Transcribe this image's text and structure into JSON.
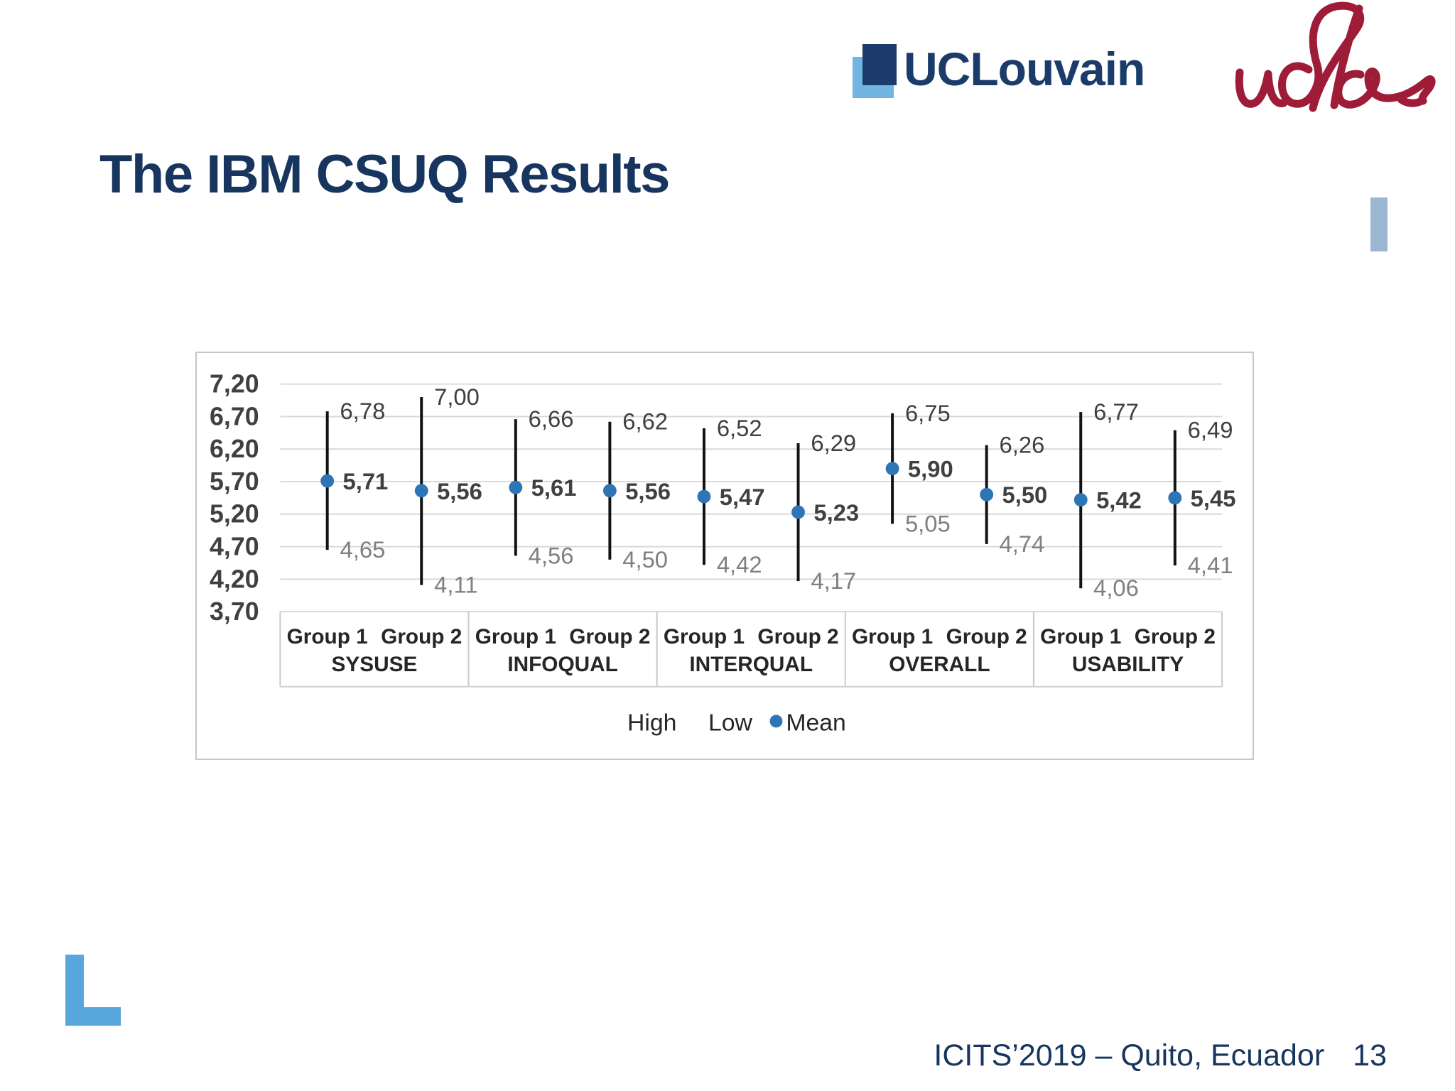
{
  "slide": {
    "title": "The IBM CSUQ Results",
    "footer_text": "ICITS’2019 – Quito, Ecuador",
    "page_number": "13"
  },
  "header": {
    "uclouvain_logo_text": "UCLouvain",
    "udla_logo_text": "udla"
  },
  "colors": {
    "title_navy": "#17355e",
    "uclouvain_navy": "#1b3c6b",
    "logo_light_blue": "#58a8db",
    "udla_crimson": "#9e1c38",
    "right_accent_blue": "#9cb7d3",
    "corner_l_blue": "#58a7dc",
    "mean_dot_blue": "#2e75b6",
    "grid_gray": "#d9d9d9",
    "high_label_gray": "#3f3f3f",
    "low_label_gray": "#7f7f7f",
    "mean_label_gray": "#404040"
  },
  "chart_data": {
    "type": "hilo-mean",
    "title": "",
    "categories": [
      "SYSUSE",
      "INFOQUAL",
      "INTERQUAL",
      "OVERALL",
      "USABILITY"
    ],
    "group_labels": [
      "Group 1",
      "Group 2"
    ],
    "series": [
      {
        "category": "SYSUSE",
        "group": "Group 1",
        "high": 6.78,
        "mean": 5.71,
        "low": 4.65
      },
      {
        "category": "SYSUSE",
        "group": "Group 2",
        "high": 7.0,
        "mean": 5.56,
        "low": 4.11
      },
      {
        "category": "INFOQUAL",
        "group": "Group 1",
        "high": 6.66,
        "mean": 5.61,
        "low": 4.56
      },
      {
        "category": "INFOQUAL",
        "group": "Group 2",
        "high": 6.62,
        "mean": 5.56,
        "low": 4.5
      },
      {
        "category": "INTERQUAL",
        "group": "Group 1",
        "high": 6.52,
        "mean": 5.47,
        "low": 4.42
      },
      {
        "category": "INTERQUAL",
        "group": "Group 2",
        "high": 6.29,
        "mean": 5.23,
        "low": 4.17
      },
      {
        "category": "OVERALL",
        "group": "Group 1",
        "high": 6.75,
        "mean": 5.9,
        "low": 5.05
      },
      {
        "category": "OVERALL",
        "group": "Group 2",
        "high": 6.26,
        "mean": 5.5,
        "low": 4.74
      },
      {
        "category": "USABILITY",
        "group": "Group 1",
        "high": 6.77,
        "mean": 5.42,
        "low": 4.06
      },
      {
        "category": "USABILITY",
        "group": "Group 2",
        "high": 6.49,
        "mean": 5.45,
        "low": 4.41
      }
    ],
    "y_ticks": [
      "7,20",
      "6,70",
      "6,20",
      "5,70",
      "5,20",
      "4,70",
      "4,20",
      "3,70"
    ],
    "ylim": [
      3.7,
      7.2
    ],
    "y_step": 0.5,
    "legend": [
      "High",
      "Low",
      "Mean"
    ],
    "legend_position": "bottom",
    "grid": true,
    "number_format": "comma-decimal"
  }
}
